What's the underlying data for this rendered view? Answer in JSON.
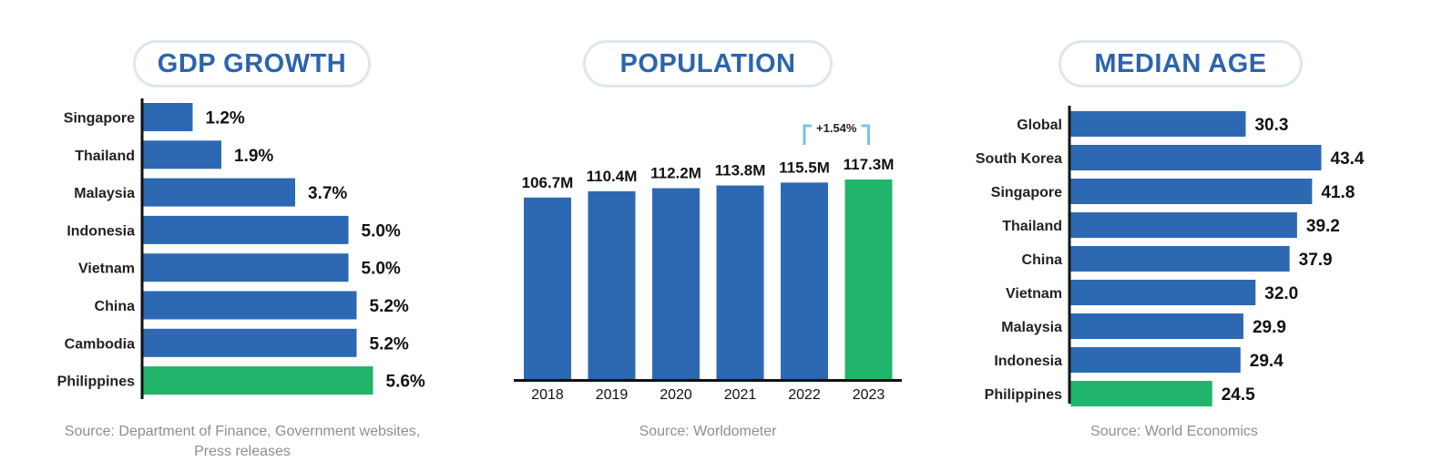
{
  "colors": {
    "bar": "#2c69b2",
    "highlight": "#20b56a",
    "axis": "#111111",
    "bracket": "#7fc2e0"
  },
  "chart_data": [
    {
      "type": "bar",
      "orientation": "horizontal",
      "title": "GDP GROWTH",
      "categories": [
        "Singapore",
        "Thailand",
        "Malaysia",
        "Indonesia",
        "Vietnam",
        "China",
        "Cambodia",
        "Philippines"
      ],
      "values": [
        1.2,
        1.9,
        3.7,
        5.0,
        5.0,
        5.2,
        5.2,
        5.6
      ],
      "value_labels": [
        "1.2%",
        "1.9%",
        "3.7%",
        "5.0%",
        "5.0%",
        "5.2%",
        "5.2%",
        "5.6%"
      ],
      "highlight": "Philippines",
      "xlim": [
        0,
        5.6
      ],
      "source": "Source: Department of Finance, Government websites, Press releases"
    },
    {
      "type": "bar",
      "orientation": "vertical",
      "title": "POPULATION",
      "categories": [
        "2018",
        "2019",
        "2020",
        "2021",
        "2022",
        "2023"
      ],
      "values": [
        106.7,
        110.4,
        112.2,
        113.8,
        115.5,
        117.3
      ],
      "value_labels": [
        "106.7M",
        "110.4M",
        "112.2M",
        "113.8M",
        "115.5M",
        "117.3M"
      ],
      "highlight": "2023",
      "annotation": "+1.54%",
      "ylim": [
        0,
        117.3
      ],
      "source": "Source: Worldometer"
    },
    {
      "type": "bar",
      "orientation": "horizontal",
      "title": "MEDIAN AGE",
      "categories": [
        "Global",
        "South Korea",
        "Singapore",
        "Thailand",
        "China",
        "Vietnam",
        "Malaysia",
        "Indonesia",
        "Philippines"
      ],
      "values": [
        30.3,
        43.4,
        41.8,
        39.2,
        37.9,
        32.0,
        29.9,
        29.4,
        24.5
      ],
      "value_labels": [
        "30.3",
        "43.4",
        "41.8",
        "39.2",
        "37.9",
        "32.0",
        "29.9",
        "29.4",
        "24.5"
      ],
      "highlight": "Philippines",
      "xlim": [
        0,
        43.4
      ],
      "source": "Source: World Economics"
    }
  ]
}
